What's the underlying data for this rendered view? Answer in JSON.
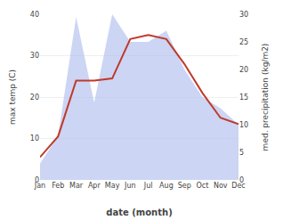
{
  "chart_data": {
    "type": "line",
    "xlabel": "date (month)",
    "ylabel": "max temp (C)",
    "y2label": "med. precipitation (kg/m2)",
    "categories": [
      "Jan",
      "Feb",
      "Mar",
      "Apr",
      "May",
      "Jun",
      "Jul",
      "Aug",
      "Sep",
      "Oct",
      "Nov",
      "Dec"
    ],
    "series": [
      {
        "type": "area",
        "axis": "y2",
        "color": "#b0bfee",
        "values": [
          3.0,
          8.0,
          29.5,
          14.0,
          30.0,
          25.0,
          25.0,
          27.0,
          20.0,
          15.0,
          13.0,
          10.0
        ]
      },
      {
        "type": "line",
        "color": "#c0392b",
        "values": [
          5.5,
          10.5,
          24.0,
          24.0,
          24.5,
          34.0,
          35.0,
          34.0,
          28.0,
          21.0,
          15.0,
          13.5
        ]
      }
    ],
    "ylim": [
      0,
      40
    ],
    "yticks": [
      0,
      10,
      20,
      30,
      40
    ],
    "y2lim": [
      0,
      30
    ],
    "y2ticks": [
      0,
      5,
      10,
      15,
      20,
      25,
      30
    ],
    "grid": true
  }
}
